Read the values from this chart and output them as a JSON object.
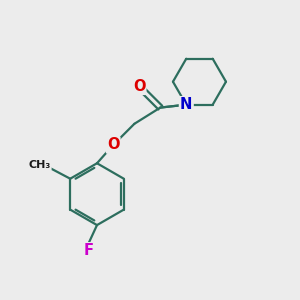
{
  "background_color": "#ececec",
  "line_color": "#2d6e5e",
  "atom_colors": {
    "O": "#dd0000",
    "N": "#0000cc",
    "F": "#cc00cc",
    "C": "#1a1a1a"
  },
  "line_width": 1.6,
  "font_size": 9.5,
  "fig_size": [
    3.0,
    3.0
  ],
  "dpi": 100
}
